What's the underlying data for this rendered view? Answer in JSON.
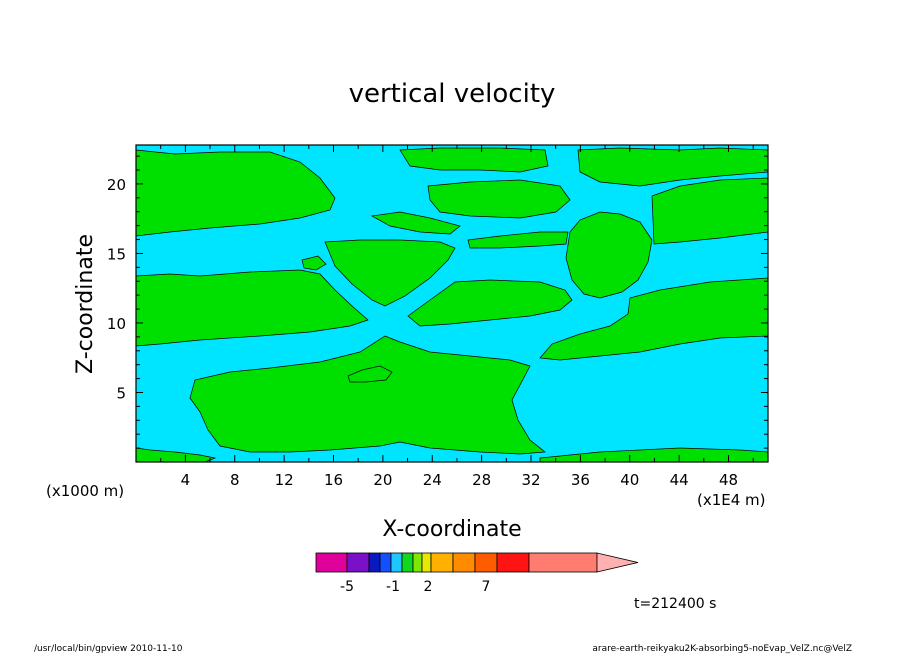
{
  "chart_data": {
    "type": "heatmap",
    "title": "vertical velocity",
    "xlabel": "X-coordinate",
    "ylabel": "Z-coordinate",
    "x_unit_label": "(x1E4 m)",
    "y_unit_label": "(x1000 m)",
    "x_ticks": [
      4,
      8,
      12,
      16,
      20,
      24,
      28,
      32,
      36,
      40,
      44,
      48
    ],
    "y_ticks": [
      5,
      10,
      15,
      20
    ],
    "xlim": [
      0,
      51.2
    ],
    "ylim": [
      0,
      22.8
    ],
    "grid": false,
    "colorbar": {
      "orientation": "horizontal",
      "labels": [
        "-5",
        "-1",
        "2",
        "7"
      ],
      "colors": [
        "#e0009c",
        "#7a10c8",
        "#0a1abf",
        "#1450ff",
        "#1ec8ff",
        "#10d820",
        "#80e800",
        "#e8e800",
        "#ffb000",
        "#ff8c00",
        "#ff5c00",
        "#ff1414",
        "#ff7c70",
        "#ffb0b0"
      ],
      "dominant_colors": {
        "downdraft": "#00e5ff",
        "updraft": "#00e000"
      }
    },
    "time_label": "t=212400 s",
    "footer_left": "/usr/local/bin/gpview  2010-11-10",
    "footer_right": "arare-earth-reikyaku2K-absorbing5-noEvap_VelZ.nc@VelZ"
  }
}
